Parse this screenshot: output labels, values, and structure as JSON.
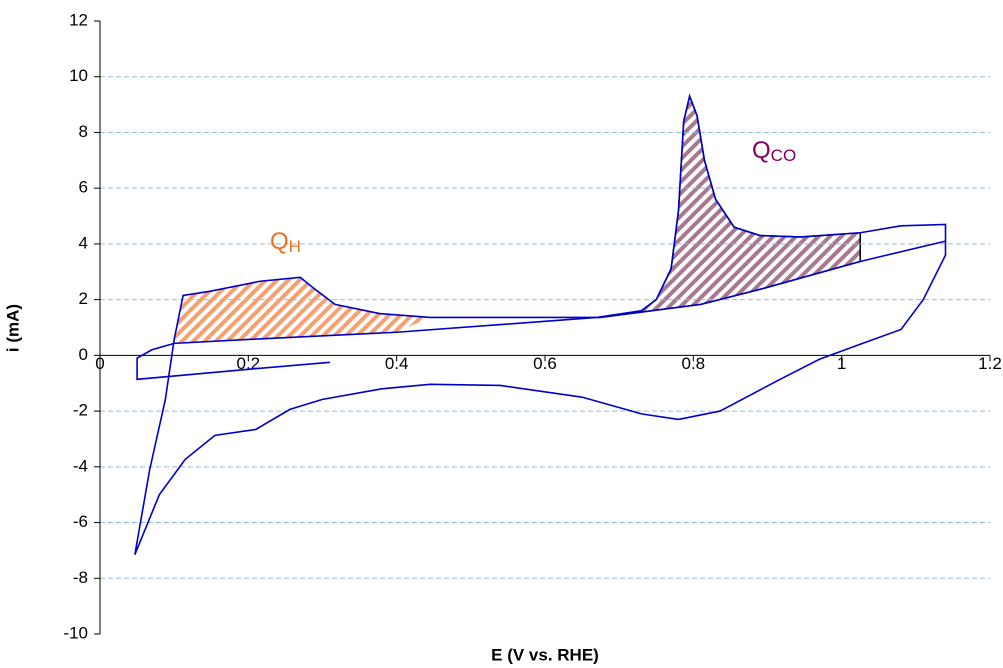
{
  "chart_data": {
    "type": "line",
    "x_label": "E (V vs. RHE)",
    "y_label": "i (mA)",
    "xlim": [
      0,
      1.2
    ],
    "ylim": [
      -10,
      12
    ],
    "xticks": [
      0,
      0.2,
      0.4,
      0.6,
      0.8,
      1,
      1.2
    ],
    "yticks": [
      -10,
      -8,
      -6,
      -4,
      -2,
      0,
      2,
      4,
      6,
      8,
      10,
      12
    ],
    "grid": true,
    "series": [
      {
        "color": "#0000cc",
        "x": [
          0.31,
          0.2,
          0.05,
          0.05,
          0.07,
          0.1,
          0.2,
          0.4,
          0.67,
          0.73,
          0.75,
          0.77,
          0.78,
          0.787,
          0.795,
          0.805,
          0.815,
          0.83,
          0.855,
          0.89,
          0.945,
          1.025,
          1.08,
          1.14,
          1.14,
          1.11,
          1.08,
          1.025,
          0.97,
          0.917,
          0.836,
          0.78,
          0.73,
          0.65,
          0.54,
          0.445,
          0.38,
          0.3,
          0.256,
          0.21,
          0.155,
          0.115,
          0.08,
          0.047
        ],
        "values": [
          -0.25,
          -0.5,
          -0.86,
          -0.1,
          0.2,
          0.43,
          0.57,
          0.83,
          1.36,
          1.6,
          2.0,
          3.1,
          5.2,
          8.4,
          9.3,
          8.6,
          7.0,
          5.6,
          4.6,
          4.3,
          4.25,
          4.4,
          4.65,
          4.7,
          3.6,
          2.0,
          0.93,
          0.4,
          -0.14,
          -0.86,
          -2.0,
          -2.3,
          -2.1,
          -1.5,
          -1.08,
          -1.04,
          -1.2,
          -1.58,
          -1.94,
          -2.66,
          -2.87,
          -3.73,
          -5.0,
          -7.15
        ]
      },
      {
        "color": "#0000cc",
        "x": [
          0.047,
          0.067,
          0.088,
          0.1,
          0.112,
          0.148,
          0.216,
          0.27,
          0.29,
          0.317,
          0.377,
          0.445,
          0.674,
          0.81,
          0.89,
          1.025,
          1.14
        ],
        "values": [
          -7.15,
          -4.1,
          -1.6,
          0.57,
          2.15,
          2.3,
          2.66,
          2.8,
          2.37,
          1.83,
          1.5,
          1.36,
          1.36,
          1.83,
          2.37,
          3.37,
          4.1
        ]
      }
    ],
    "annotations": [
      {
        "text": "Q",
        "subscript": "H",
        "color": "#f07020"
      },
      {
        "text": "Q",
        "subscript": "CO",
        "color": "#800060"
      }
    ]
  }
}
